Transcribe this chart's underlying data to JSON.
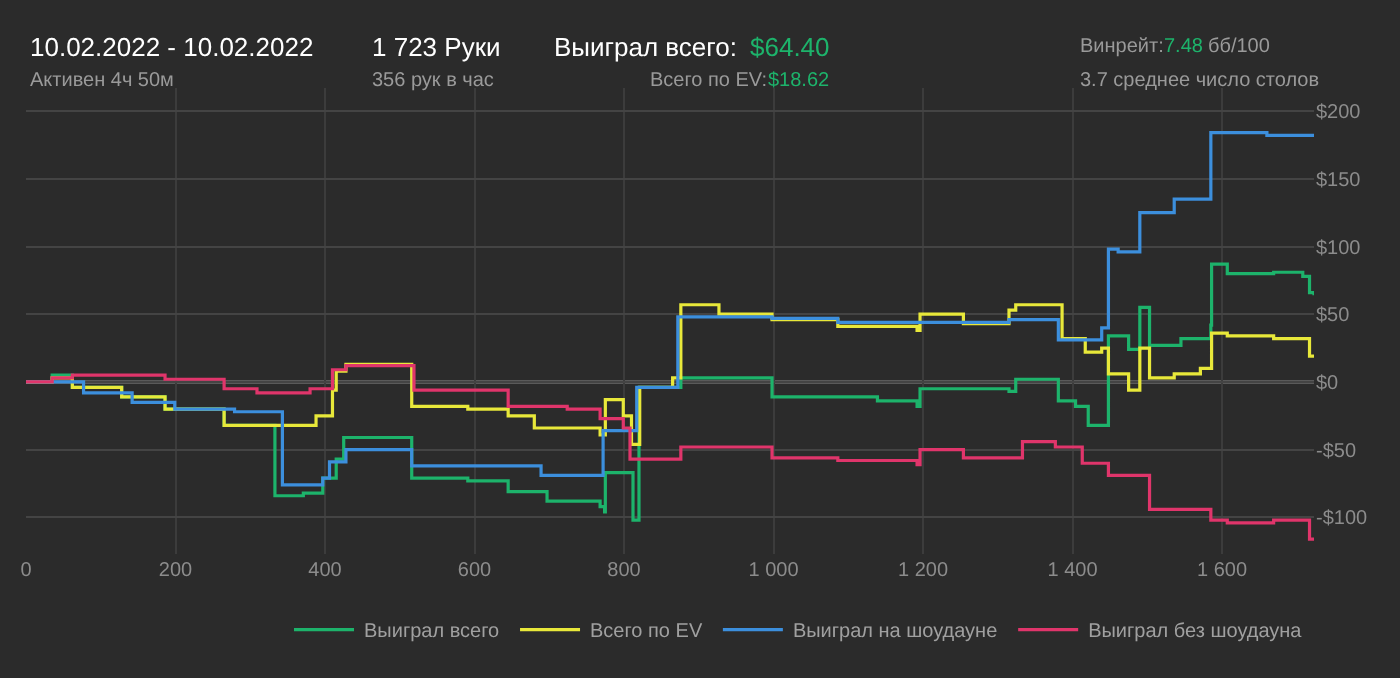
{
  "chart_data": {
    "type": "step",
    "title": "10.02.2022 - 10.02.2022",
    "subtitle": "Активен 4ч 50м",
    "annotations": [
      "1 723 Руки",
      "356 рук в час",
      "Выиграл всего:",
      "$64.40",
      "Всего по EV:",
      "$18.62",
      "Винрейт:",
      "7.48",
      "бб/100",
      "3.7 среднее число столов"
    ],
    "series": [
      {
        "name": "Выиграл всего",
        "color": "#1db36b",
        "x": [
          0,
          35,
          62,
          128,
          186,
          265,
          333,
          371,
          397,
          415,
          425,
          516,
          591,
          645,
          697,
          768,
          774,
          775,
          812,
          820,
          876,
          909,
          998,
          1139,
          1192,
          1196,
          1315,
          1324,
          1381,
          1404,
          1421,
          1448,
          1475,
          1490,
          1503,
          1545,
          1585,
          1586,
          1607,
          1669,
          1708,
          1717,
          1723
        ],
        "values": [
          0,
          5,
          -4,
          -11,
          -20,
          -32,
          -84,
          -82,
          -71,
          -57,
          -41,
          -71,
          -73,
          -81,
          -88,
          -92,
          -96,
          -67,
          -102,
          -4,
          3,
          3,
          -11,
          -14,
          -18,
          -5,
          -7,
          2,
          -14,
          -18,
          -32,
          34,
          24,
          55,
          27,
          32,
          42,
          87,
          80,
          81,
          78,
          66,
          64
        ]
      },
      {
        "name": "Всего по EV",
        "color": "#e8e83a",
        "x": [
          0,
          35,
          62,
          128,
          186,
          265,
          371,
          388,
          410,
          415,
          428,
          516,
          591,
          645,
          680,
          768,
          775,
          799,
          810,
          821,
          865,
          876,
          927,
          998,
          1086,
          1192,
          1196,
          1254,
          1315,
          1324,
          1386,
          1417,
          1439,
          1448,
          1475,
          1490,
          1503,
          1536,
          1571,
          1586,
          1607,
          1669,
          1717,
          1723
        ],
        "values": [
          0,
          3,
          -4,
          -11,
          -20,
          -32,
          -32,
          -25,
          -6,
          8,
          13,
          -18,
          -20,
          -25,
          -34,
          -39,
          -13,
          -25,
          -46,
          -4,
          3,
          57,
          50,
          46,
          41,
          38,
          50,
          43,
          53,
          57,
          32,
          22,
          25,
          6,
          -6,
          25,
          3,
          6,
          10,
          36,
          34,
          32,
          19,
          19
        ]
      },
      {
        "name": "Выиграл на шоудауне",
        "color": "#3c8fdd",
        "x": [
          0,
          77,
          142,
          199,
          279,
          343,
          397,
          406,
          428,
          516,
          689,
          772,
          817,
          872,
          998,
          1086,
          1315,
          1381,
          1439,
          1448,
          1461,
          1490,
          1536,
          1585,
          1660,
          1723
        ],
        "values": [
          0,
          -8,
          -15,
          -20,
          -22,
          -76,
          -71,
          -59,
          -50,
          -62,
          -69,
          -36,
          -4,
          48,
          47,
          44,
          46,
          31,
          40,
          98,
          96,
          125,
          135,
          184,
          182,
          182
        ]
      },
      {
        "name": "Выиграл без шоудауна",
        "color": "#e0356b",
        "x": [
          0,
          35,
          62,
          186,
          265,
          309,
          380,
          410,
          428,
          519,
          645,
          724,
          768,
          799,
          808,
          876,
          998,
          1086,
          1192,
          1196,
          1254,
          1333,
          1377,
          1413,
          1448,
          1503,
          1585,
          1607,
          1669,
          1717,
          1723
        ],
        "values": [
          0,
          3,
          5,
          2,
          -5,
          -8,
          -5,
          9,
          12,
          -6,
          -18,
          -20,
          -27,
          -34,
          -57,
          -48,
          -56,
          -58,
          -61,
          -50,
          -56,
          -44,
          -48,
          -60,
          -69,
          -94,
          -102,
          -104,
          -102,
          -116,
          -116
        ]
      }
    ],
    "xlim": [
      0,
      1723
    ],
    "xticks": [
      0,
      200,
      400,
      600,
      800,
      {
        "value": 1000,
        "label": "1 000"
      },
      {
        "value": 1200,
        "label": "1 200"
      },
      {
        "value": 1400,
        "label": "1 400"
      },
      {
        "value": 1600,
        "label": "1 600"
      }
    ],
    "ylim": [
      -127,
      217
    ],
    "yticks": [
      {
        "value": -100,
        "label": "-$100"
      },
      {
        "value": -50,
        "label": "-$50"
      },
      {
        "value": 0,
        "label": "$0"
      },
      {
        "value": 50,
        "label": "$50"
      },
      {
        "value": 100,
        "label": "$100"
      },
      {
        "value": 150,
        "label": "$150"
      },
      {
        "value": 200,
        "label": "$200"
      }
    ],
    "ref_lines": [
      {
        "axis": "y",
        "value": 0,
        "color": "#8a8a8a"
      }
    ],
    "grid": true,
    "legend": "bottom right",
    "marker": "none",
    "line_style": "solid"
  }
}
